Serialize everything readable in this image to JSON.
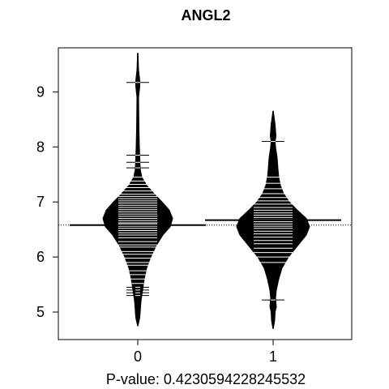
{
  "chart_data": {
    "type": "beanplot",
    "title": "ANGL2",
    "xlabel": "P-value: 0.4230594228245532",
    "ylabel": "",
    "categories": [
      "0",
      "1"
    ],
    "y_ticks": [
      "5",
      "6",
      "7",
      "8",
      "9"
    ],
    "ylim": [
      4.5,
      9.8
    ],
    "overall_mean": 6.58,
    "groups": [
      {
        "name": "0",
        "mean": 6.58,
        "min": 4.75,
        "max": 9.7,
        "density": [
          [
            4.75,
            0.005
          ],
          [
            4.9,
            0.05
          ],
          [
            5.0,
            0.06
          ],
          [
            5.2,
            0.08
          ],
          [
            5.4,
            0.12
          ],
          [
            5.6,
            0.16
          ],
          [
            5.8,
            0.22
          ],
          [
            6.0,
            0.32
          ],
          [
            6.2,
            0.45
          ],
          [
            6.4,
            0.62
          ],
          [
            6.55,
            0.8
          ],
          [
            6.7,
            0.86
          ],
          [
            6.85,
            0.78
          ],
          [
            7.0,
            0.6
          ],
          [
            7.15,
            0.4
          ],
          [
            7.3,
            0.22
          ],
          [
            7.45,
            0.1
          ],
          [
            7.6,
            0.06
          ],
          [
            7.8,
            0.05
          ],
          [
            8.0,
            0.04
          ],
          [
            8.3,
            0.03
          ],
          [
            8.6,
            0.025
          ],
          [
            8.9,
            0.02
          ],
          [
            9.1,
            0.05
          ],
          [
            9.2,
            0.05
          ],
          [
            9.4,
            0.02
          ],
          [
            9.7,
            0.005
          ]
        ],
        "points": [
          5.3,
          5.35,
          5.4,
          5.45,
          5.52,
          5.6,
          5.68,
          5.75,
          5.85,
          5.9,
          5.98,
          6.05,
          6.1,
          6.18,
          6.22,
          6.28,
          6.35,
          6.4,
          6.44,
          6.48,
          6.52,
          6.56,
          6.6,
          6.62,
          6.66,
          6.7,
          6.74,
          6.78,
          6.82,
          6.86,
          6.9,
          6.94,
          6.98,
          7.02,
          7.06,
          7.1,
          7.14,
          7.2,
          7.26,
          7.32,
          7.38,
          7.45,
          7.62,
          7.72,
          7.85,
          9.17
        ]
      },
      {
        "name": "1",
        "mean": 6.67,
        "min": 4.7,
        "max": 8.65,
        "density": [
          [
            4.7,
            0.005
          ],
          [
            4.85,
            0.04
          ],
          [
            5.0,
            0.05
          ],
          [
            5.1,
            0.08
          ],
          [
            5.25,
            0.06
          ],
          [
            5.4,
            0.08
          ],
          [
            5.6,
            0.14
          ],
          [
            5.8,
            0.22
          ],
          [
            6.0,
            0.38
          ],
          [
            6.2,
            0.6
          ],
          [
            6.4,
            0.82
          ],
          [
            6.55,
            0.9
          ],
          [
            6.7,
            0.82
          ],
          [
            6.85,
            0.6
          ],
          [
            7.0,
            0.4
          ],
          [
            7.15,
            0.26
          ],
          [
            7.3,
            0.18
          ],
          [
            7.45,
            0.14
          ],
          [
            7.6,
            0.12
          ],
          [
            7.8,
            0.1
          ],
          [
            8.0,
            0.06
          ],
          [
            8.1,
            0.05
          ],
          [
            8.2,
            0.07
          ],
          [
            8.4,
            0.05
          ],
          [
            8.65,
            0.005
          ]
        ],
        "points": [
          5.22,
          5.9,
          6.0,
          6.08,
          6.16,
          6.24,
          6.3,
          6.36,
          6.42,
          6.47,
          6.52,
          6.56,
          6.6,
          6.64,
          6.68,
          6.72,
          6.76,
          6.8,
          6.85,
          6.9,
          6.96,
          7.02,
          7.08,
          7.15,
          7.24,
          7.34,
          7.45,
          8.1
        ]
      }
    ]
  }
}
